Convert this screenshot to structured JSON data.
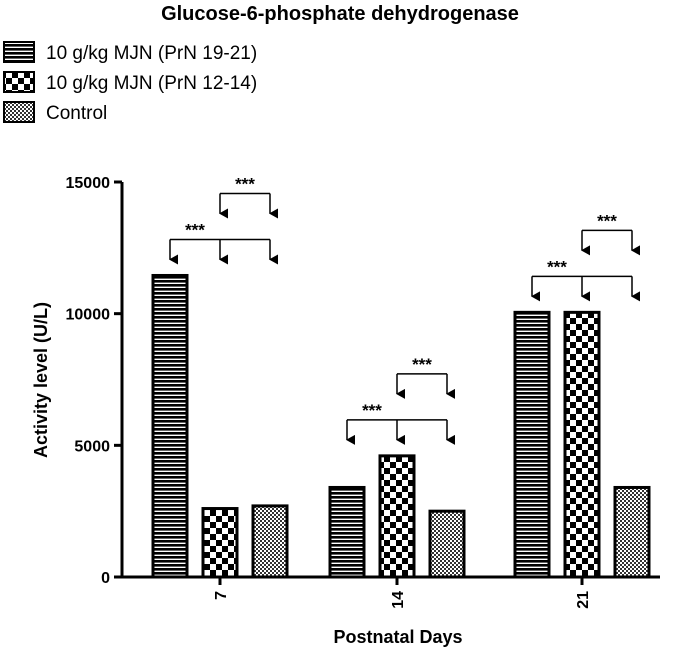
{
  "chart_data": {
    "type": "bar",
    "title": "Glucose-6-phosphate dehydrogenase",
    "xlabel": "Postnatal Days",
    "ylabel": "Activity level (U/L)",
    "categories": [
      "7",
      "14",
      "21"
    ],
    "ylim": [
      0,
      15000
    ],
    "yticks": [
      "0",
      "5000",
      "10000",
      "15000"
    ],
    "legend_position": "top-left",
    "grid": false,
    "series": [
      {
        "name": "10 g/kg MJN (PrN 19-21)",
        "pattern": "horizontal-stripes",
        "values": [
          11450,
          3400,
          10050
        ]
      },
      {
        "name": "10 g/kg MJN (PrN 12-14)",
        "pattern": "checkerboard",
        "values": [
          2600,
          4600,
          10050
        ]
      },
      {
        "name": "Control",
        "pattern": "fine-checker",
        "values": [
          2700,
          2500,
          3400
        ]
      }
    ],
    "significance": [
      {
        "category": "7",
        "from_series": 0,
        "to_series": [
          1,
          2
        ],
        "label": "***"
      },
      {
        "category": "7",
        "from_series": 1,
        "to_series": [
          2
        ],
        "label": "***"
      },
      {
        "category": "14",
        "from_series": 0,
        "to_series": [
          1,
          2
        ],
        "label": "***"
      },
      {
        "category": "14",
        "from_series": 1,
        "to_series": [
          2
        ],
        "label": "***"
      },
      {
        "category": "21",
        "from_series": 0,
        "to_series": [
          1,
          2
        ],
        "label": "***"
      },
      {
        "category": "21",
        "from_series": 1,
        "to_series": [
          2
        ],
        "label": "***"
      }
    ],
    "colors": {
      "ink": "#000000",
      "background": "#ffffff"
    }
  }
}
